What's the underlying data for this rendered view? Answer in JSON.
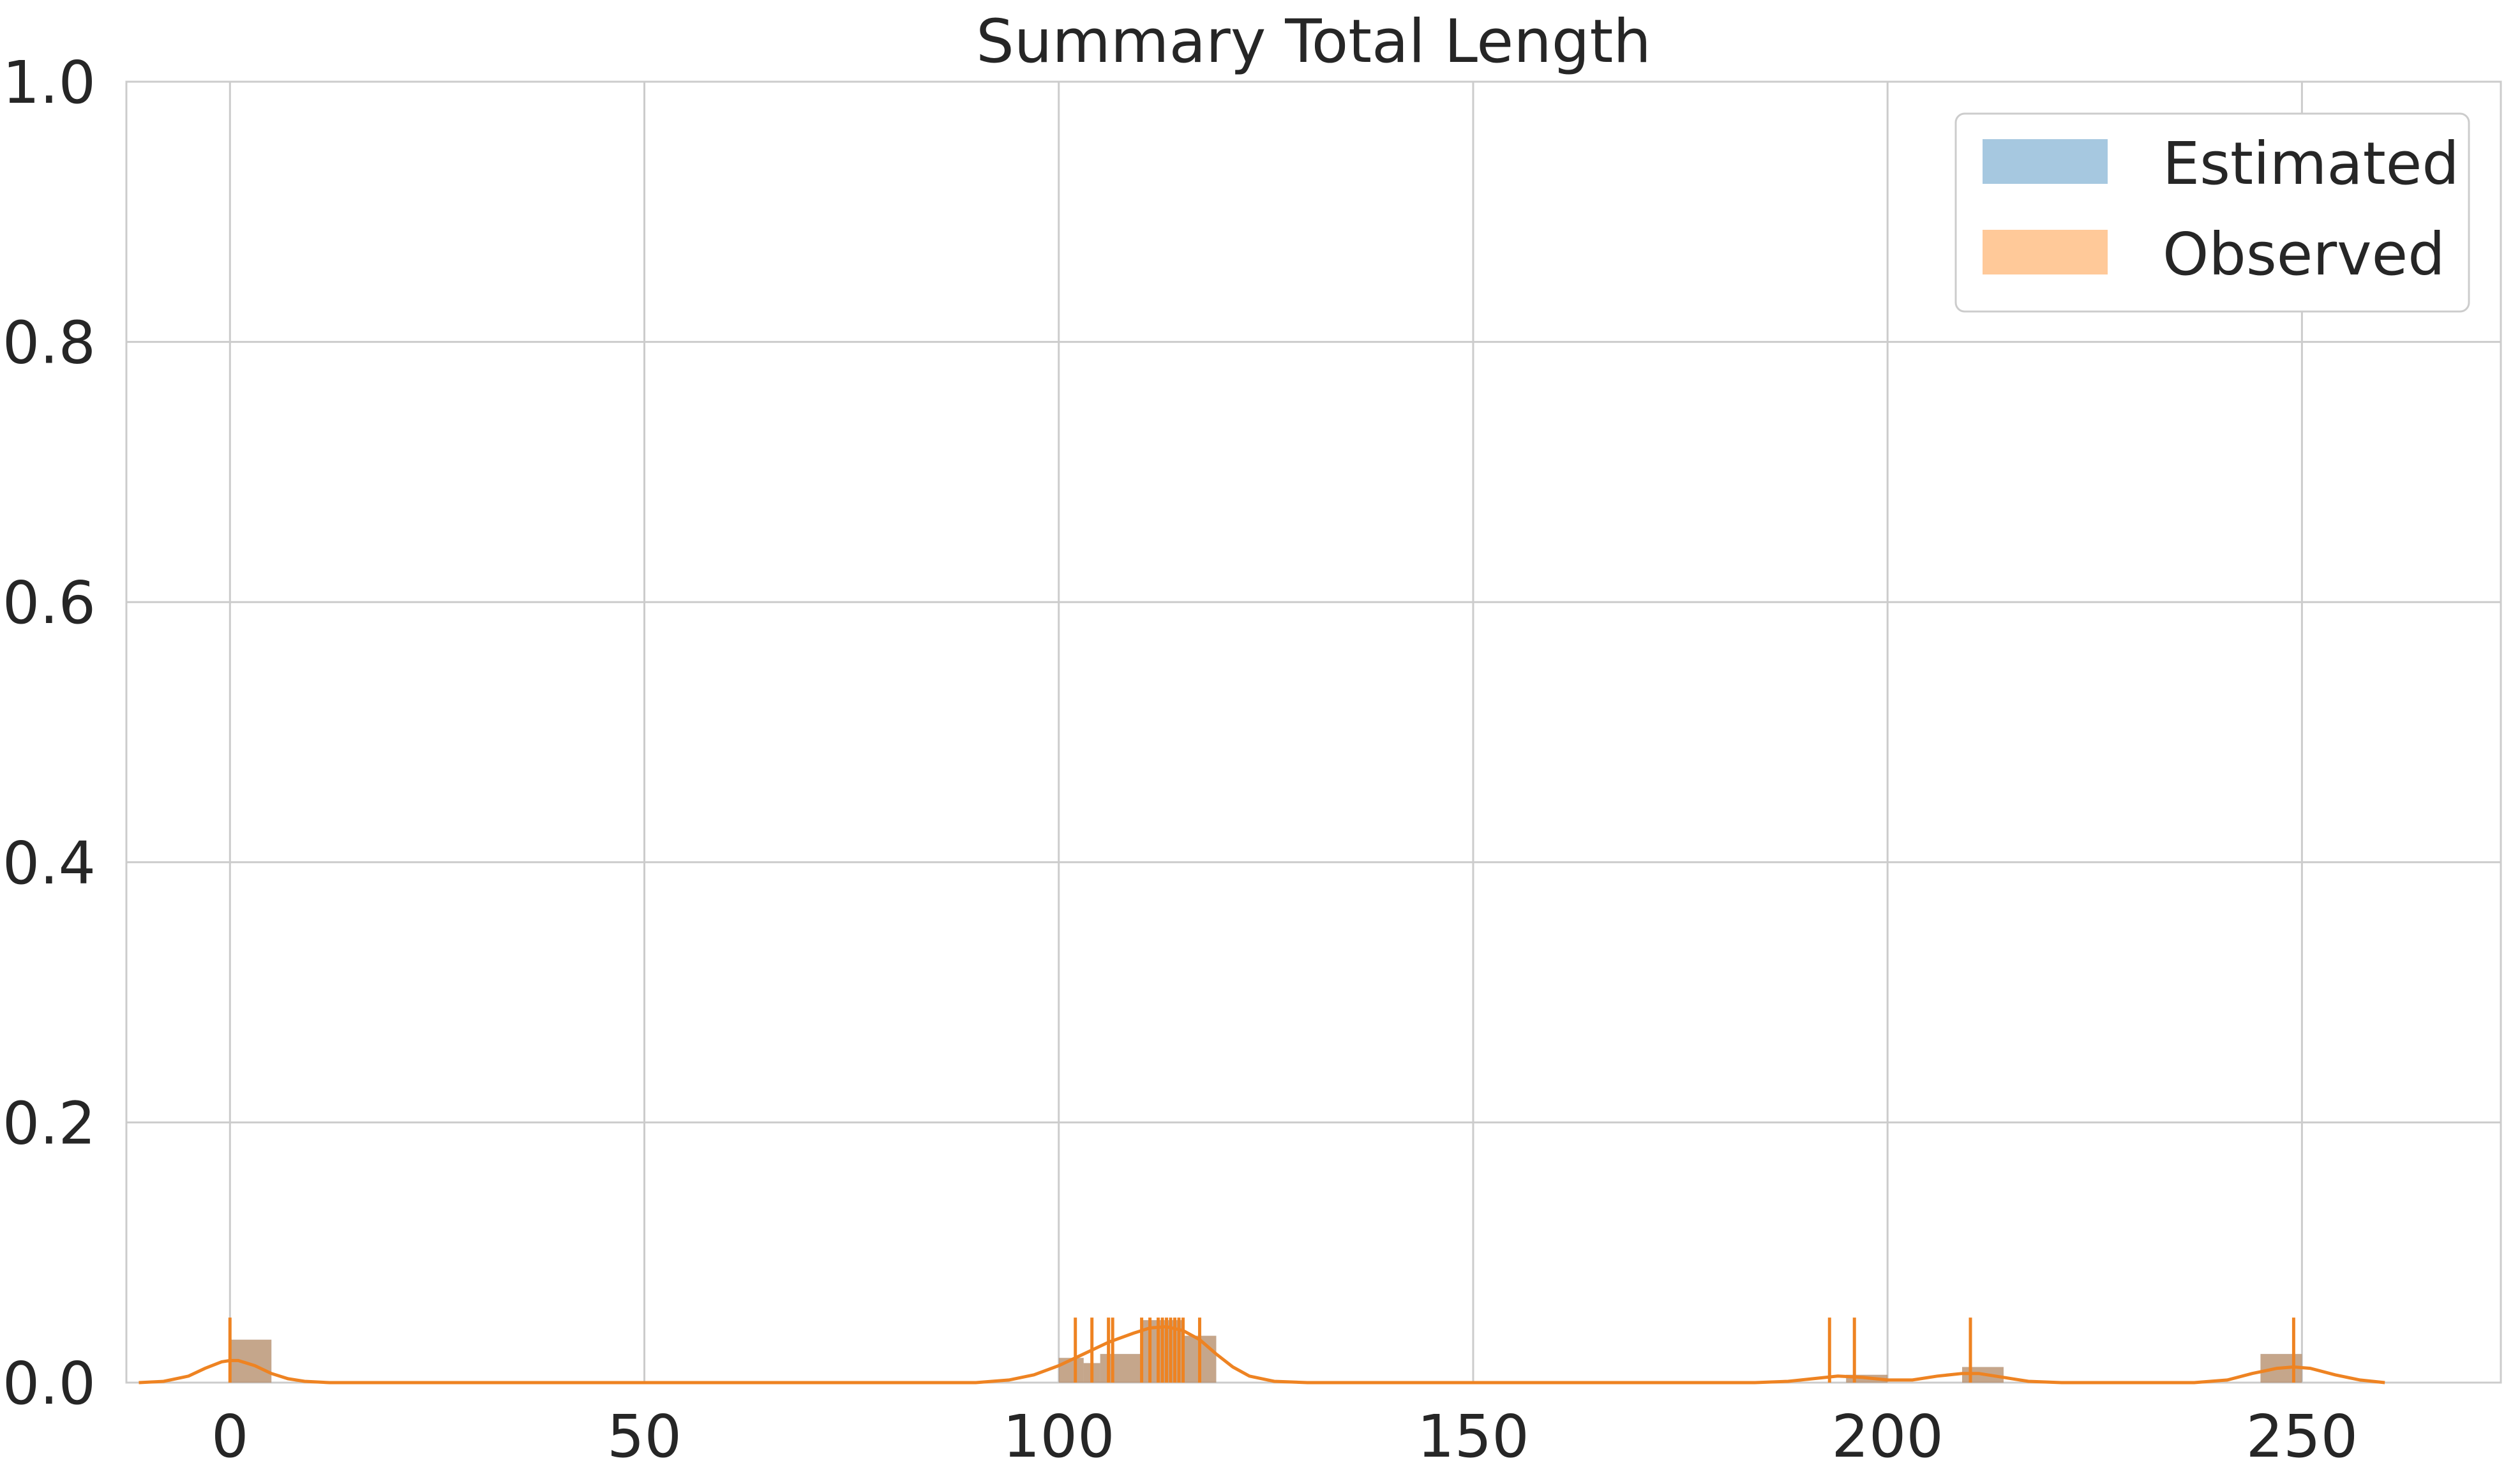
{
  "chart_data": {
    "type": "bar",
    "title": "Summary Total Length",
    "xlabel": "",
    "ylabel": "",
    "xlim": [
      -12.5,
      274
    ],
    "ylim": [
      0,
      1.0
    ],
    "x_ticks": [
      0,
      50,
      100,
      150,
      200,
      250
    ],
    "y_ticks": [
      0.0,
      0.2,
      0.4,
      0.6,
      0.8,
      1.0
    ],
    "x_tick_labels": [
      "0",
      "50",
      "100",
      "150",
      "200",
      "250"
    ],
    "y_tick_labels": [
      "0.0",
      "0.2",
      "0.4",
      "0.6",
      "0.8",
      "1.0"
    ],
    "grid": true,
    "legend": {
      "position": "top-right",
      "entries": [
        "Estimated",
        "Observed"
      ]
    },
    "series": [
      {
        "name": "Estimated",
        "color": "#a6c8e0",
        "histogram": [
          {
            "x0": 0,
            "x1": 5,
            "density": 0.033
          },
          {
            "x0": 100,
            "x1": 103,
            "density": 0.019
          },
          {
            "x0": 103,
            "x1": 105,
            "density": 0.015
          },
          {
            "x0": 105,
            "x1": 110,
            "density": 0.022
          },
          {
            "x0": 110,
            "x1": 115,
            "density": 0.048
          },
          {
            "x0": 115,
            "x1": 119,
            "density": 0.036
          },
          {
            "x0": 195,
            "x1": 200,
            "density": 0.006
          },
          {
            "x0": 209,
            "x1": 214,
            "density": 0.012
          },
          {
            "x0": 245,
            "x1": 250,
            "density": 0.022
          }
        ]
      },
      {
        "name": "Observed",
        "color": "#ffc999",
        "line_color": "#ee8322",
        "histogram": [
          {
            "x0": 0,
            "x1": 5,
            "density": 0.033
          },
          {
            "x0": 100,
            "x1": 103,
            "density": 0.019
          },
          {
            "x0": 103,
            "x1": 105,
            "density": 0.015
          },
          {
            "x0": 105,
            "x1": 110,
            "density": 0.022
          },
          {
            "x0": 110,
            "x1": 115,
            "density": 0.048
          },
          {
            "x0": 115,
            "x1": 119,
            "density": 0.036
          },
          {
            "x0": 195,
            "x1": 200,
            "density": 0.006
          },
          {
            "x0": 209,
            "x1": 214,
            "density": 0.012
          },
          {
            "x0": 245,
            "x1": 250,
            "density": 0.022
          }
        ],
        "rug": [
          0,
          102,
          104,
          106,
          106.5,
          110,
          111,
          112,
          112.5,
          113,
          113.5,
          114,
          114.5,
          115,
          117,
          193,
          196,
          210,
          249
        ],
        "kde": [
          [
            -11,
            0.0
          ],
          [
            -8,
            0.001
          ],
          [
            -5,
            0.005
          ],
          [
            -3,
            0.011
          ],
          [
            -1,
            0.016
          ],
          [
            0,
            0.017
          ],
          [
            1,
            0.017
          ],
          [
            3,
            0.013
          ],
          [
            5,
            0.007
          ],
          [
            7,
            0.003
          ],
          [
            9,
            0.001
          ],
          [
            12,
            0.0
          ],
          [
            90,
            0.0
          ],
          [
            94,
            0.002
          ],
          [
            97,
            0.006
          ],
          [
            100,
            0.013
          ],
          [
            103,
            0.022
          ],
          [
            106,
            0.031
          ],
          [
            109,
            0.038
          ],
          [
            111,
            0.042
          ],
          [
            113,
            0.043
          ],
          [
            115,
            0.04
          ],
          [
            117,
            0.033
          ],
          [
            119,
            0.022
          ],
          [
            121,
            0.012
          ],
          [
            123,
            0.005
          ],
          [
            126,
            0.001
          ],
          [
            130,
            0.0
          ],
          [
            184,
            0.0
          ],
          [
            188,
            0.001
          ],
          [
            191,
            0.003
          ],
          [
            194,
            0.005
          ],
          [
            197,
            0.004
          ],
          [
            200,
            0.002
          ],
          [
            203,
            0.002
          ],
          [
            206,
            0.005
          ],
          [
            209,
            0.007
          ],
          [
            211,
            0.007
          ],
          [
            214,
            0.004
          ],
          [
            217,
            0.001
          ],
          [
            221,
            0.0
          ],
          [
            237,
            0.0
          ],
          [
            241,
            0.002
          ],
          [
            244,
            0.007
          ],
          [
            247,
            0.011
          ],
          [
            249,
            0.012
          ],
          [
            251,
            0.011
          ],
          [
            254,
            0.006
          ],
          [
            257,
            0.002
          ],
          [
            260,
            0.0
          ]
        ]
      }
    ]
  }
}
